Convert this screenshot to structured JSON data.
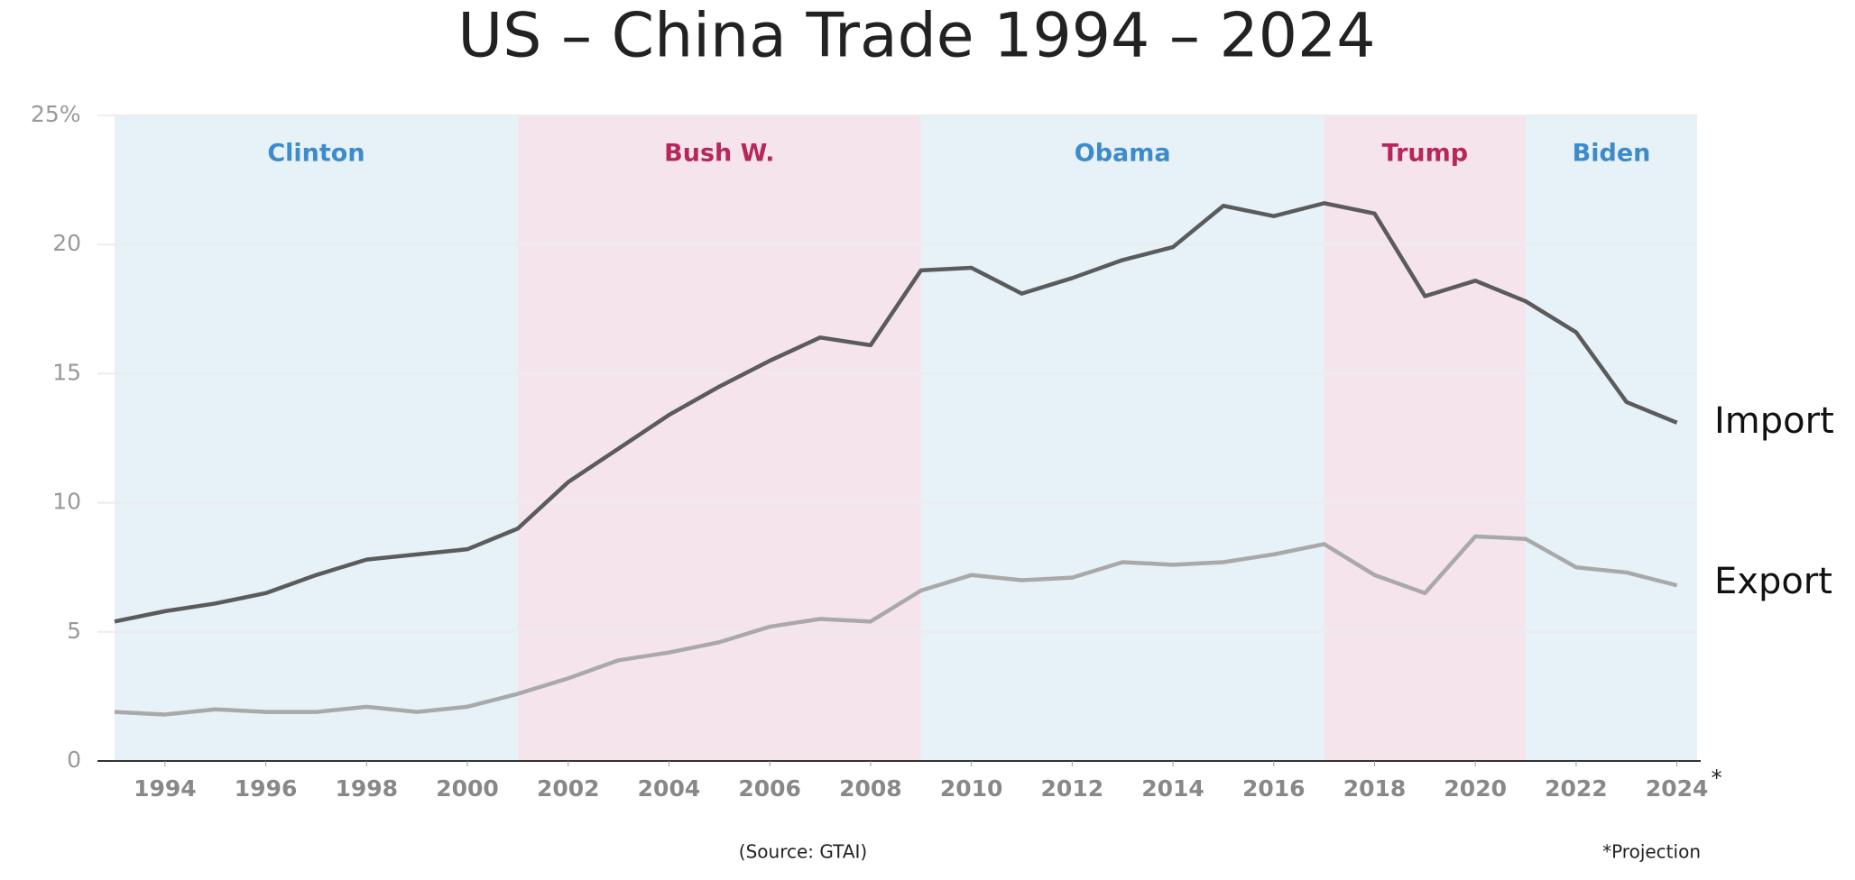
{
  "chart_data": {
    "type": "line",
    "title": "US – China Trade 1994 – 2024",
    "source": "(Source: GTAI)",
    "footnote": "*Projection",
    "tick_note": "*",
    "x": [
      1993,
      1994,
      1995,
      1996,
      1997,
      1998,
      1999,
      2000,
      2001,
      2002,
      2003,
      2004,
      2005,
      2006,
      2007,
      2008,
      2009,
      2010,
      2011,
      2012,
      2013,
      2014,
      2015,
      2016,
      2017,
      2018,
      2019,
      2020,
      2021,
      2022,
      2023,
      2024
    ],
    "series": [
      {
        "name": "Import",
        "color": "#5b5b5b",
        "values": [
          5.4,
          5.8,
          6.1,
          6.5,
          7.2,
          7.8,
          8.0,
          8.2,
          9.0,
          10.8,
          12.1,
          13.4,
          14.5,
          15.5,
          16.4,
          16.1,
          19.0,
          19.1,
          18.1,
          18.7,
          19.4,
          19.9,
          21.5,
          21.1,
          21.6,
          21.2,
          18.0,
          18.6,
          17.8,
          16.6,
          13.9,
          13.1
        ]
      },
      {
        "name": "Export",
        "color": "#a9a9a9",
        "values": [
          1.9,
          1.8,
          2.0,
          1.9,
          1.9,
          2.1,
          1.9,
          2.1,
          2.6,
          3.2,
          3.9,
          4.2,
          4.6,
          5.2,
          5.5,
          5.4,
          6.6,
          7.2,
          7.0,
          7.1,
          7.7,
          7.6,
          7.7,
          8.0,
          8.4,
          7.2,
          6.5,
          8.7,
          8.6,
          7.5,
          7.3,
          6.8
        ]
      }
    ],
    "periods": [
      {
        "name": "Clinton",
        "start": 1993,
        "end": 2001,
        "color": "#e6f1f8",
        "text_color": "#3d8bcb"
      },
      {
        "name": "Bush W.",
        "start": 2001,
        "end": 2009,
        "color": "#f5e4ec",
        "text_color": "#b8275a"
      },
      {
        "name": "Obama",
        "start": 2009,
        "end": 2017,
        "color": "#e6f1f8",
        "text_color": "#3d8bcb"
      },
      {
        "name": "Trump",
        "start": 2017,
        "end": 2021,
        "color": "#f5e4ec",
        "text_color": "#b8275a"
      },
      {
        "name": "Biden",
        "start": 2021,
        "end": 2024.4,
        "color": "#e6f1f8",
        "text_color": "#3d8bcb"
      }
    ],
    "xlim": [
      1993,
      2024.4
    ],
    "xticks": [
      1994,
      1996,
      1998,
      2000,
      2002,
      2004,
      2006,
      2008,
      2010,
      2012,
      2014,
      2016,
      2018,
      2020,
      2022,
      2024
    ],
    "ylim": [
      0,
      25
    ],
    "yticks": [
      0,
      5,
      10,
      15,
      20,
      {
        "value": 25,
        "label": "25%"
      }
    ],
    "grid": true
  }
}
